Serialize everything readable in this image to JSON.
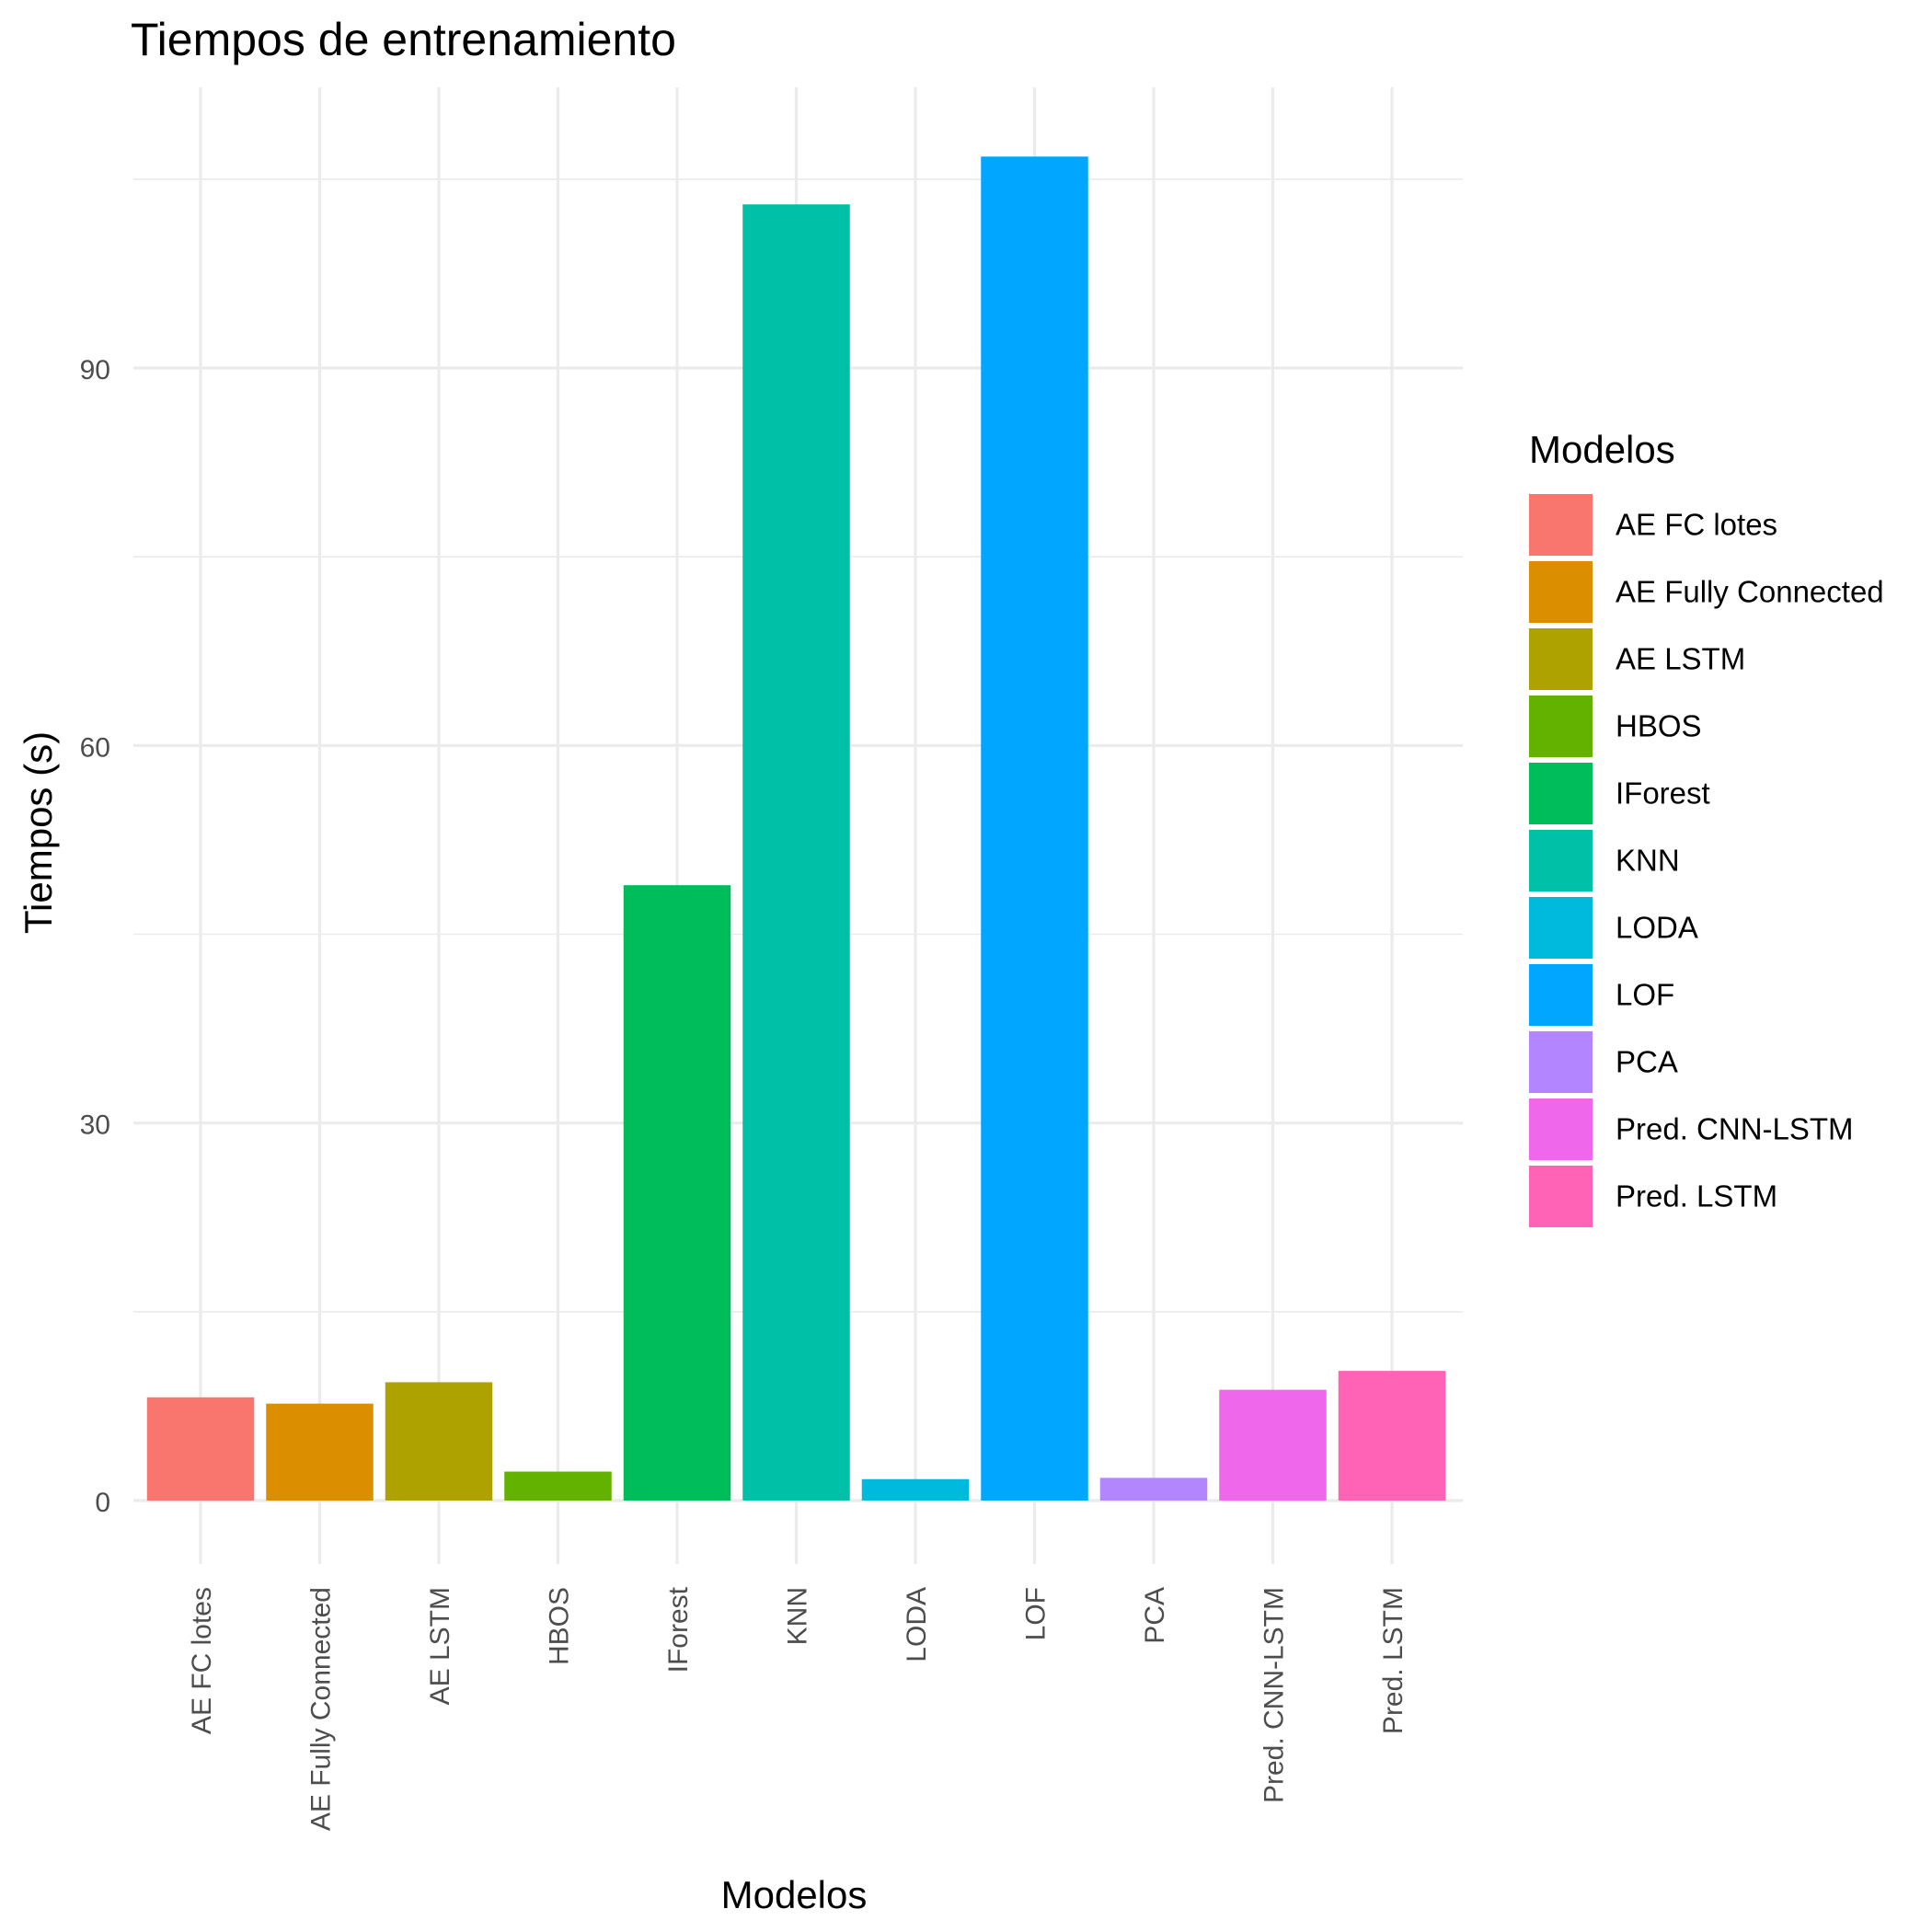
{
  "chart_data": {
    "type": "bar",
    "title": "Tiempos de entrenamiento",
    "xlabel": "Modelos",
    "ylabel": "Tiempos (s)",
    "ylim": [
      -5,
      115
    ],
    "y_ticks": [
      0,
      30,
      60,
      90
    ],
    "grid": true,
    "legend_title": "Modelos",
    "legend_position": "right",
    "categories": [
      "AE FC lotes",
      "AE Fully Connected",
      "AE LSTM",
      "HBOS",
      "IForest",
      "KNN",
      "LODA",
      "LOF",
      "PCA",
      "Pred. CNN-LSTM",
      "Pred. LSTM"
    ],
    "values": [
      8.2,
      7.7,
      9.4,
      2.3,
      48.9,
      103.0,
      1.7,
      106.8,
      1.8,
      8.8,
      10.3
    ],
    "colors": [
      "#F8766D",
      "#DB8E00",
      "#AEA200",
      "#64B200",
      "#00BD5C",
      "#00C1A7",
      "#00BADE",
      "#00A6FF",
      "#B385FF",
      "#EF67EB",
      "#FF63B6"
    ]
  }
}
